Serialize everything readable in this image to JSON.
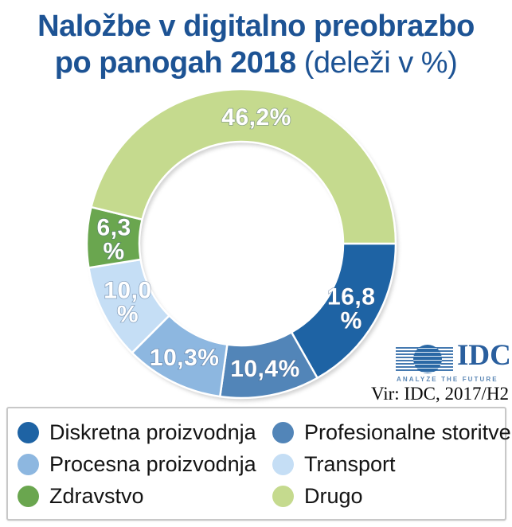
{
  "title": {
    "line1": "Naložbe v digitalno preobrazbo",
    "line2_bold": "po panogah 2018",
    "line2_light": " (deleži v %)"
  },
  "source": {
    "text": "Vir: IDC, 2017/H2"
  },
  "logo": {
    "brand": "IDC",
    "tagline": "ANALYZE THE FUTURE"
  },
  "colors": {
    "title_blue": "#1d5394",
    "label_text": "#ffffff",
    "legend_border": "#c8c8c8",
    "legend_text": "#141414",
    "shadow": "#9e9e9e"
  },
  "chart_data": {
    "type": "pie",
    "subtype": "donut",
    "title": "Naložbe v digitalno preobrazbo po panogah 2018 (deleži v %)",
    "unit": "%",
    "direction": "clockwise",
    "start_angle_deg": 90,
    "inner_radius_ratio": 0.66,
    "legend_position": "bottom",
    "legend_columns": 2,
    "grid": false,
    "segments": [
      {
        "label": "Diskretna proizvodnja",
        "value": 16.8,
        "display_lines": [
          "16,8",
          "%"
        ],
        "color": "#1e63a4"
      },
      {
        "label": "Profesionalne storitve",
        "value": 10.4,
        "display_lines": [
          "10,4%"
        ],
        "color": "#5285b8"
      },
      {
        "label": "Procesna proizvodnja",
        "value": 10.3,
        "display_lines": [
          "10,3%"
        ],
        "color": "#8db7e0"
      },
      {
        "label": "Transport",
        "value": 10.0,
        "display_lines": [
          "10,0",
          "%"
        ],
        "color": "#c5def5"
      },
      {
        "label": "Zdravstvo",
        "value": 6.3,
        "display_lines": [
          "6,3",
          "%"
        ],
        "color": "#6aa64f"
      },
      {
        "label": "Drugo",
        "value": 46.2,
        "display_lines": [
          "46,2%"
        ],
        "color": "#c5da8e"
      }
    ]
  }
}
